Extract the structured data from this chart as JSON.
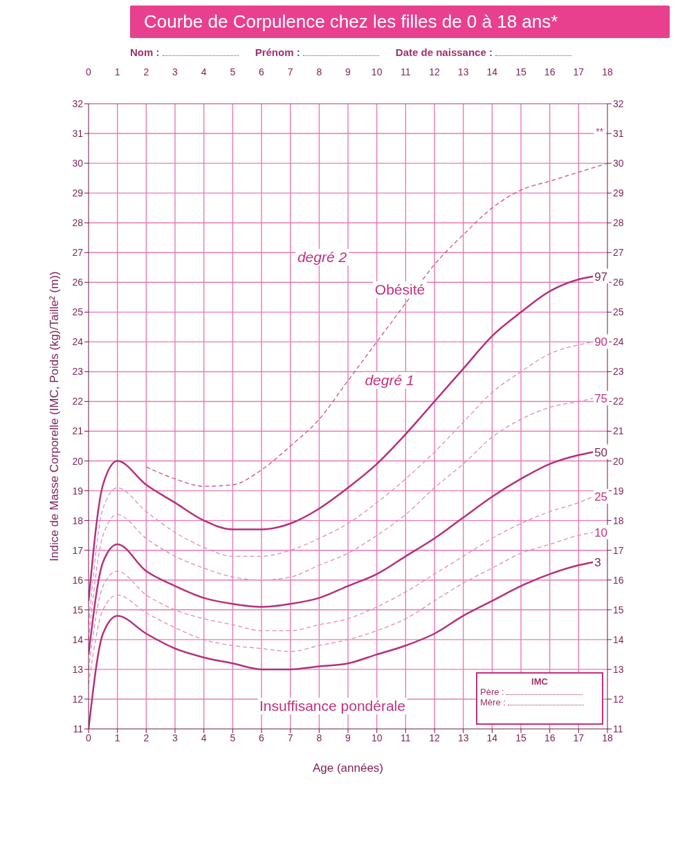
{
  "chart_data": {
    "type": "line",
    "title": "Courbe de Corpulence chez les filles de 0 à 18 ans*",
    "xlabel": "Age (années)",
    "ylabel": "Indice de Masse Corporelle (IMC, Poids (kg)/Taille² (m))",
    "xlim": [
      0,
      18
    ],
    "xticks": [
      0,
      1,
      2,
      3,
      4,
      5,
      6,
      7,
      8,
      9,
      10,
      11,
      12,
      13,
      14,
      15,
      16,
      17,
      18
    ],
    "x2lim": [
      0,
      18
    ],
    "x2ticks": [
      0,
      1,
      2,
      3,
      4,
      5,
      6,
      7,
      8,
      9,
      10,
      11,
      12,
      13,
      14,
      15,
      16,
      17,
      18
    ],
    "ylim": [
      11,
      32
    ],
    "yticks": [
      11,
      12,
      13,
      14,
      15,
      16,
      17,
      18,
      19,
      20,
      21,
      22,
      23,
      24,
      25,
      26,
      27,
      28,
      29,
      30,
      31,
      32
    ],
    "y2lim": [
      11,
      32
    ],
    "y2ticks": [
      11,
      12,
      13,
      14,
      15,
      16,
      17,
      18,
      19,
      20,
      21,
      22,
      23,
      24,
      25,
      26,
      27,
      28,
      29,
      30,
      31,
      32
    ],
    "grid": true,
    "legend": false,
    "marker": "none",
    "x": [
      0,
      0.5,
      1,
      2,
      3,
      4,
      5,
      6,
      7,
      8,
      9,
      10,
      11,
      12,
      13,
      14,
      15,
      16,
      17,
      17.5
    ],
    "series": [
      {
        "name": "97",
        "color": "#b5307a",
        "line_style": "solid",
        "values": [
          15.3,
          19.2,
          20.0,
          19.2,
          18.6,
          18.0,
          17.7,
          17.7,
          17.9,
          18.4,
          19.1,
          19.9,
          20.9,
          22.0,
          23.1,
          24.2,
          25.0,
          25.7,
          26.1,
          26.2
        ]
      },
      {
        "name": "90",
        "color": "#e08ab8",
        "line_style": "dashed",
        "values": [
          14.5,
          18.4,
          19.1,
          18.3,
          17.6,
          17.1,
          16.8,
          16.8,
          17.0,
          17.4,
          17.9,
          18.6,
          19.4,
          20.3,
          21.3,
          22.3,
          23.0,
          23.6,
          23.9,
          24.0
        ]
      },
      {
        "name": "75",
        "color": "#e08ab8",
        "line_style": "dashed",
        "values": [
          14.0,
          17.5,
          18.2,
          17.4,
          16.8,
          16.4,
          16.1,
          16.0,
          16.1,
          16.5,
          16.9,
          17.5,
          18.2,
          19.1,
          19.9,
          20.8,
          21.4,
          21.8,
          22.0,
          22.1
        ]
      },
      {
        "name": "50",
        "color": "#b5307a",
        "line_style": "solid",
        "values": [
          13.5,
          16.6,
          17.2,
          16.3,
          15.8,
          15.4,
          15.2,
          15.1,
          15.2,
          15.4,
          15.8,
          16.2,
          16.8,
          17.4,
          18.1,
          18.8,
          19.4,
          19.9,
          20.2,
          20.3
        ]
      },
      {
        "name": "25",
        "color": "#e08ab8",
        "line_style": "dashed",
        "values": [
          13.0,
          15.8,
          16.3,
          15.5,
          15.0,
          14.7,
          14.5,
          14.3,
          14.3,
          14.5,
          14.7,
          15.1,
          15.6,
          16.2,
          16.8,
          17.4,
          17.9,
          18.3,
          18.6,
          18.8
        ]
      },
      {
        "name": "10",
        "color": "#e08ab8",
        "line_style": "dashed",
        "values": [
          12.5,
          15.0,
          15.5,
          14.9,
          14.4,
          14.0,
          13.8,
          13.7,
          13.6,
          13.8,
          14.0,
          14.3,
          14.7,
          15.3,
          15.9,
          16.4,
          16.9,
          17.2,
          17.5,
          17.6
        ]
      },
      {
        "name": "3",
        "color": "#b5307a",
        "line_style": "solid",
        "values": [
          11.0,
          14.2,
          14.8,
          14.2,
          13.7,
          13.4,
          13.2,
          13.0,
          13.0,
          13.1,
          13.2,
          13.5,
          13.8,
          14.2,
          14.8,
          15.3,
          15.8,
          16.2,
          16.5,
          16.6
        ]
      },
      {
        "color": "#d04a90",
        "line_style": "dashed",
        "x": [
          2,
          3,
          4,
          5,
          6,
          7,
          8,
          9,
          10,
          11,
          12,
          13,
          14,
          15,
          16,
          17,
          18
        ],
        "values": [
          19.8,
          19.4,
          19.15,
          19.2,
          19.7,
          20.5,
          21.4,
          22.7,
          24.0,
          25.3,
          26.6,
          27.6,
          28.5,
          29.1,
          29.4,
          29.7,
          30.0
        ]
      }
    ],
    "annotations": [
      "Nom :",
      "Prénom :",
      "Date de naissance :",
      "IMC",
      "Père :",
      "Mère :",
      "degré 2",
      "Obésité",
      "degré 1",
      "Insuffisance pondérale",
      "**"
    ]
  }
}
